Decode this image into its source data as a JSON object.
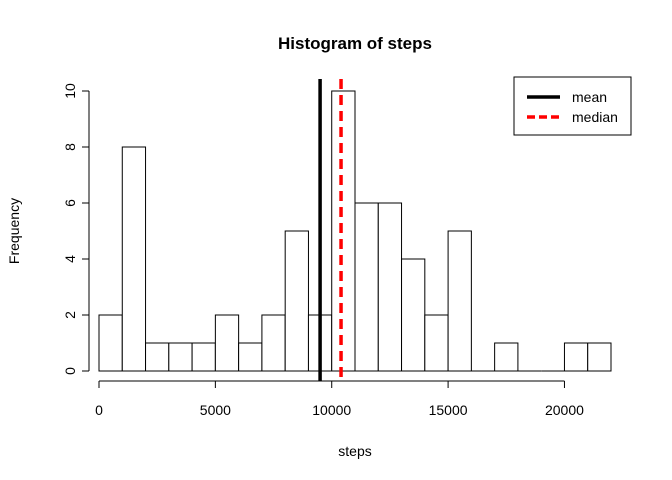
{
  "chart_data": {
    "type": "bar",
    "title": "Histogram of steps",
    "xlabel": "steps",
    "ylabel": "Frequency",
    "bin_width": 1000,
    "bins": [
      {
        "start": 0,
        "end": 1000,
        "count": 2
      },
      {
        "start": 1000,
        "end": 2000,
        "count": 8
      },
      {
        "start": 2000,
        "end": 3000,
        "count": 1
      },
      {
        "start": 3000,
        "end": 4000,
        "count": 1
      },
      {
        "start": 4000,
        "end": 5000,
        "count": 1
      },
      {
        "start": 5000,
        "end": 6000,
        "count": 2
      },
      {
        "start": 6000,
        "end": 7000,
        "count": 1
      },
      {
        "start": 7000,
        "end": 8000,
        "count": 2
      },
      {
        "start": 8000,
        "end": 9000,
        "count": 5
      },
      {
        "start": 9000,
        "end": 10000,
        "count": 2
      },
      {
        "start": 10000,
        "end": 11000,
        "count": 10
      },
      {
        "start": 11000,
        "end": 12000,
        "count": 6
      },
      {
        "start": 12000,
        "end": 13000,
        "count": 6
      },
      {
        "start": 13000,
        "end": 14000,
        "count": 4
      },
      {
        "start": 14000,
        "end": 15000,
        "count": 2
      },
      {
        "start": 15000,
        "end": 16000,
        "count": 5
      },
      {
        "start": 16000,
        "end": 17000,
        "count": 0
      },
      {
        "start": 17000,
        "end": 18000,
        "count": 1
      },
      {
        "start": 18000,
        "end": 19000,
        "count": 0
      },
      {
        "start": 19000,
        "end": 20000,
        "count": 0
      },
      {
        "start": 20000,
        "end": 21000,
        "count": 1
      },
      {
        "start": 21000,
        "end": 22000,
        "count": 1
      }
    ],
    "xlim": [
      0,
      22000
    ],
    "ylim": [
      0,
      10
    ],
    "x_ticks": [
      0,
      5000,
      10000,
      15000,
      20000
    ],
    "y_ticks": [
      0,
      2,
      4,
      6,
      8,
      10
    ],
    "reference_lines": [
      {
        "name": "mean",
        "x": 9500,
        "color": "#000000",
        "style": "solid"
      },
      {
        "name": "median",
        "x": 10400,
        "color": "#ff0000",
        "style": "dashed"
      }
    ],
    "legend_position": "top-right",
    "grid": false
  }
}
